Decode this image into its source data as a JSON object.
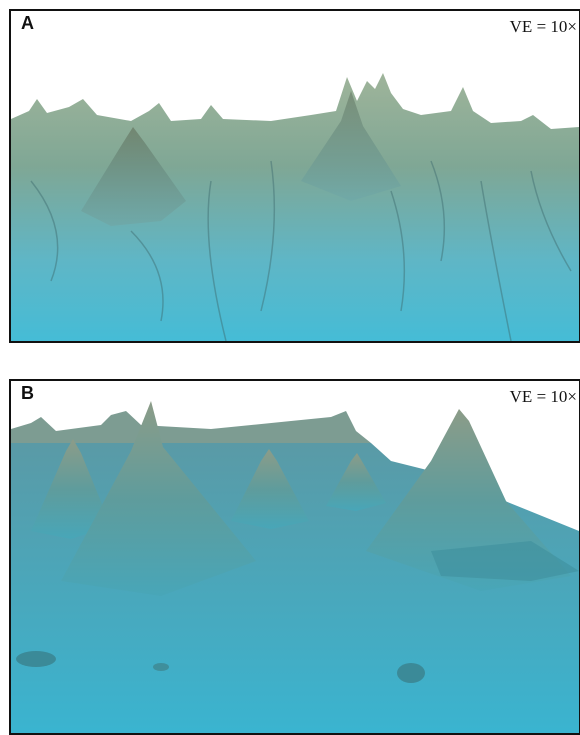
{
  "panels": [
    {
      "label": "A",
      "annotation": "VE = 10×"
    },
    {
      "label": "B",
      "annotation": "VE = 10×"
    }
  ]
}
